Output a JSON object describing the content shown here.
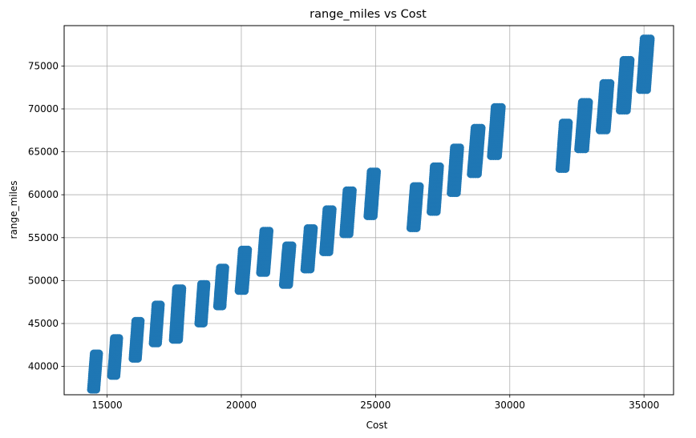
{
  "chart_data": {
    "type": "scatter",
    "title": "range_miles vs Cost",
    "xlabel": "Cost",
    "ylabel": "range_miles",
    "xlim": [
      13400,
      36100
    ],
    "ylim": [
      36700,
      79700
    ],
    "xticks": [
      15000,
      20000,
      25000,
      30000,
      35000
    ],
    "yticks": [
      40000,
      45000,
      50000,
      55000,
      60000,
      65000,
      70000,
      75000
    ],
    "grid": true,
    "marker_color": "#1f77b4",
    "clusters": [
      {
        "x": [
          14400,
          14700
        ],
        "y_min": 37300,
        "y_max": 41500
      },
      {
        "x": [
          15150,
          15450
        ],
        "y_min": 38900,
        "y_max": 43300
      },
      {
        "x": [
          15950,
          16250
        ],
        "y_min": 40900,
        "y_max": 45300
      },
      {
        "x": [
          16700,
          17000
        ],
        "y_min": 42700,
        "y_max": 47200
      },
      {
        "x": [
          17450,
          17800
        ],
        "y_min": 43100,
        "y_max": 49100
      },
      {
        "x": [
          18400,
          18700
        ],
        "y_min": 45000,
        "y_max": 49600
      },
      {
        "x": [
          19100,
          19400
        ],
        "y_min": 47000,
        "y_max": 51500
      },
      {
        "x": [
          19900,
          20250
        ],
        "y_min": 48800,
        "y_max": 53600
      },
      {
        "x": [
          20700,
          21050
        ],
        "y_min": 50900,
        "y_max": 55800
      },
      {
        "x": [
          21550,
          21900
        ],
        "y_min": 49500,
        "y_max": 54100
      },
      {
        "x": [
          22350,
          22700
        ],
        "y_min": 51300,
        "y_max": 56100
      },
      {
        "x": [
          23050,
          23400
        ],
        "y_min": 53300,
        "y_max": 58300
      },
      {
        "x": [
          23800,
          24150
        ],
        "y_min": 55400,
        "y_max": 60500
      },
      {
        "x": [
          24700,
          25050
        ],
        "y_min": 57500,
        "y_max": 62700
      },
      {
        "x": [
          26300,
          26650
        ],
        "y_min": 56100,
        "y_max": 61000
      },
      {
        "x": [
          27050,
          27400
        ],
        "y_min": 58000,
        "y_max": 63300
      },
      {
        "x": [
          27800,
          28150
        ],
        "y_min": 60200,
        "y_max": 65500
      },
      {
        "x": [
          28550,
          28950
        ],
        "y_min": 62400,
        "y_max": 67800
      },
      {
        "x": [
          29300,
          29700
        ],
        "y_min": 64500,
        "y_max": 70200
      },
      {
        "x": [
          31850,
          32200
        ],
        "y_min": 63000,
        "y_max": 68400
      },
      {
        "x": [
          32550,
          32950
        ],
        "y_min": 65300,
        "y_max": 70800
      },
      {
        "x": [
          33350,
          33750
        ],
        "y_min": 67500,
        "y_max": 73000
      },
      {
        "x": [
          34100,
          34500
        ],
        "y_min": 69800,
        "y_max": 75700
      },
      {
        "x": [
          34850,
          35250
        ],
        "y_min": 72200,
        "y_max": 78200
      }
    ]
  }
}
